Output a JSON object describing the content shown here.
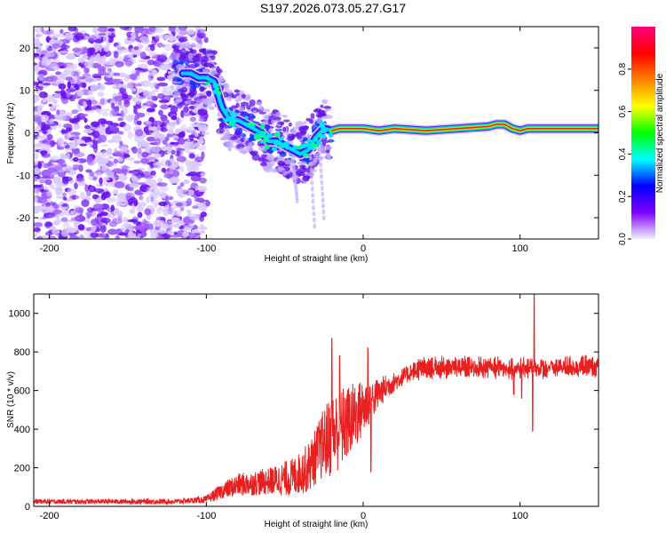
{
  "figure_title": "S197.2026.073.05.27.G17",
  "chart_data": [
    {
      "type": "heatmap",
      "name": "spectrogram",
      "xlabel": "Height of straight line (km)",
      "ylabel": "Frequency (Hz)",
      "xlim": [
        -210,
        150
      ],
      "ylim": [
        -25,
        25
      ],
      "xticks": [
        -200,
        -100,
        0,
        100
      ],
      "xtick_labels": [
        "-200",
        "-100",
        "0",
        "100"
      ],
      "yticks": [
        -20,
        -10,
        0,
        10,
        20
      ],
      "ytick_labels": [
        "-20",
        "-10",
        "0",
        "10",
        "20"
      ],
      "ridge_path": [
        [
          -115,
          14
        ],
        [
          -110,
          14
        ],
        [
          -105,
          13
        ],
        [
          -100,
          13
        ],
        [
          -95,
          12
        ],
        [
          -90,
          6
        ],
        [
          -85,
          3
        ],
        [
          -80,
          3
        ],
        [
          -75,
          2
        ],
        [
          -70,
          1
        ],
        [
          -65,
          0
        ],
        [
          -60,
          -2
        ],
        [
          -55,
          -2
        ],
        [
          -50,
          -3
        ],
        [
          -45,
          -4
        ],
        [
          -40,
          -5
        ],
        [
          -35,
          -4
        ],
        [
          -30,
          -1
        ],
        [
          -25,
          1
        ],
        [
          -20,
          0.5
        ],
        [
          -15,
          1
        ],
        [
          -10,
          1
        ],
        [
          -5,
          1
        ],
        [
          0,
          1
        ],
        [
          10,
          0.5
        ],
        [
          20,
          1
        ],
        [
          40,
          0.5
        ],
        [
          60,
          1
        ],
        [
          80,
          1.5
        ],
        [
          85,
          2
        ],
        [
          90,
          2
        ],
        [
          95,
          1
        ],
        [
          100,
          0.5
        ],
        [
          105,
          1
        ],
        [
          110,
          1
        ],
        [
          120,
          1
        ],
        [
          130,
          1
        ],
        [
          140,
          1
        ],
        [
          150,
          1
        ]
      ],
      "colorbar": {
        "label": "Normalized spectral amplitude",
        "range": [
          0,
          1
        ],
        "ticks": [
          0.0,
          0.2,
          0.4,
          0.6,
          0.8
        ],
        "tick_labels": [
          "0.0",
          "0.2",
          "0.4",
          "0.6",
          "0.8"
        ],
        "colormap": [
          "#f0f0ff",
          "#8000ff",
          "#0000ff",
          "#00ffff",
          "#00ff00",
          "#ffff00",
          "#ff8000",
          "#ff0000",
          "#ff0080"
        ]
      }
    },
    {
      "type": "line",
      "name": "snr",
      "xlabel": "Height of straight line (km)",
      "ylabel": "SNR (10 * v/v)",
      "xlim": [
        -210,
        150
      ],
      "ylim": [
        0,
        1100
      ],
      "xticks": [
        -200,
        -100,
        0,
        100
      ],
      "xtick_labels": [
        "-200",
        "-100",
        "0",
        "100"
      ],
      "yticks": [
        0,
        200,
        400,
        600,
        800,
        1000
      ],
      "ytick_labels": [
        "0",
        "200",
        "400",
        "600",
        "800",
        "1000"
      ],
      "color": "#e82020",
      "baseline_profile": [
        [
          -210,
          25
        ],
        [
          -150,
          25
        ],
        [
          -120,
          25
        ],
        [
          -100,
          35
        ],
        [
          -90,
          80
        ],
        [
          -80,
          110
        ],
        [
          -60,
          130
        ],
        [
          -45,
          150
        ],
        [
          -35,
          200
        ],
        [
          -25,
          330
        ],
        [
          -15,
          400
        ],
        [
          -5,
          470
        ],
        [
          5,
          550
        ],
        [
          15,
          620
        ],
        [
          25,
          670
        ],
        [
          35,
          710
        ],
        [
          50,
          720
        ],
        [
          80,
          720
        ],
        [
          100,
          715
        ],
        [
          120,
          720
        ],
        [
          150,
          725
        ]
      ],
      "noise_profile": [
        [
          -210,
          12
        ],
        [
          -110,
          14
        ],
        [
          -100,
          20
        ],
        [
          -80,
          60
        ],
        [
          -60,
          70
        ],
        [
          -40,
          110
        ],
        [
          -30,
          150
        ],
        [
          -20,
          220
        ],
        [
          -10,
          200
        ],
        [
          0,
          150
        ],
        [
          10,
          80
        ],
        [
          20,
          50
        ],
        [
          40,
          40
        ],
        [
          150,
          40
        ]
      ],
      "spikes": [
        [
          -20,
          870
        ],
        [
          -15,
          780
        ],
        [
          -10,
          600
        ],
        [
          3,
          820
        ],
        [
          5,
          180
        ],
        [
          96,
          580
        ],
        [
          101,
          560
        ],
        [
          108,
          390
        ],
        [
          109,
          1100
        ],
        [
          112,
          680
        ]
      ]
    }
  ]
}
